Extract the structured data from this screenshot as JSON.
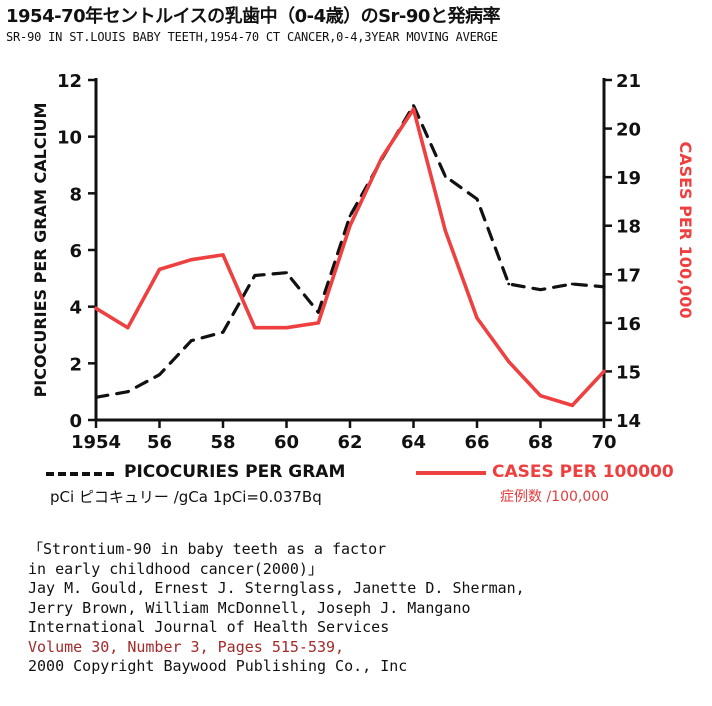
{
  "header": {
    "title": "1954-70年セントルイスの乳歯中（0-4歳）のSr-90と発病率",
    "subtitle": "SR-90 IN ST.LOUIS BABY TEETH,1954-70  CT CANCER,0-4,3YEAR MOVING  AVERGE"
  },
  "chart_data": {
    "type": "line",
    "x_label": "",
    "x_ticks": [
      "1954",
      "56",
      "58",
      "60",
      "62",
      "64",
      "66",
      "68",
      "70"
    ],
    "xlim": [
      1954,
      1970
    ],
    "y_left": {
      "label": "PICOCURIES PER GRAM CALCIUM",
      "ylim": [
        0,
        12
      ],
      "ticks": [
        "0",
        "2",
        "4",
        "6",
        "8",
        "10",
        "12"
      ]
    },
    "y_right": {
      "label": "CASES PER 100,000",
      "ylim": [
        14,
        21
      ],
      "ticks": [
        "14",
        "15",
        "16",
        "17",
        "18",
        "19",
        "20",
        "21"
      ]
    },
    "series": [
      {
        "name": "PICOCURIES PER GRAM",
        "axis": "left",
        "style": "dashed",
        "color": "#111111",
        "x": [
          1954,
          1955,
          1956,
          1957,
          1958,
          1959,
          1960,
          1961,
          1962,
          1963,
          1964,
          1965,
          1966,
          1967,
          1968,
          1969,
          1970
        ],
        "y": [
          0.8,
          1.0,
          1.6,
          2.8,
          3.1,
          5.1,
          5.2,
          3.8,
          7.2,
          9.2,
          11.1,
          8.6,
          7.8,
          4.8,
          4.6,
          4.8,
          4.7
        ]
      },
      {
        "name": "CASES PER 100000",
        "axis": "right",
        "style": "solid",
        "color": "#ee4040",
        "x": [
          1954,
          1955,
          1956,
          1957,
          1958,
          1959,
          1960,
          1961,
          1962,
          1963,
          1964,
          1965,
          1966,
          1967,
          1968,
          1969,
          1970
        ],
        "y": [
          16.3,
          15.9,
          17.1,
          17.3,
          17.4,
          15.9,
          15.9,
          16.0,
          18.0,
          19.4,
          20.4,
          17.9,
          16.1,
          15.2,
          14.5,
          14.3,
          15.0
        ]
      }
    ],
    "legend": "bottom"
  },
  "legend": {
    "left_label": "PICOCURIES PER GRAM",
    "right_label": "CASES PER 100000"
  },
  "notes": {
    "left": "pCi ピコキュリー /gCa    1pCi=0.037Bq",
    "right": "症例数 /100,000"
  },
  "citation": {
    "line1": "「Strontium-90 in baby teeth as a factor",
    "line2": " in early childhood cancer(2000)」",
    "line3": "Jay M. Gould, Ernest J. Sternglass, Janette D. Sherman,",
    "line4": "Jerry Brown, William McDonnell, Joseph J. Mangano",
    "line5": "International Journal of Health Services",
    "line6": "Volume 30, Number 3, Pages 515-539,",
    "line7": "2000  Copyright Baywood Publishing Co., Inc"
  }
}
